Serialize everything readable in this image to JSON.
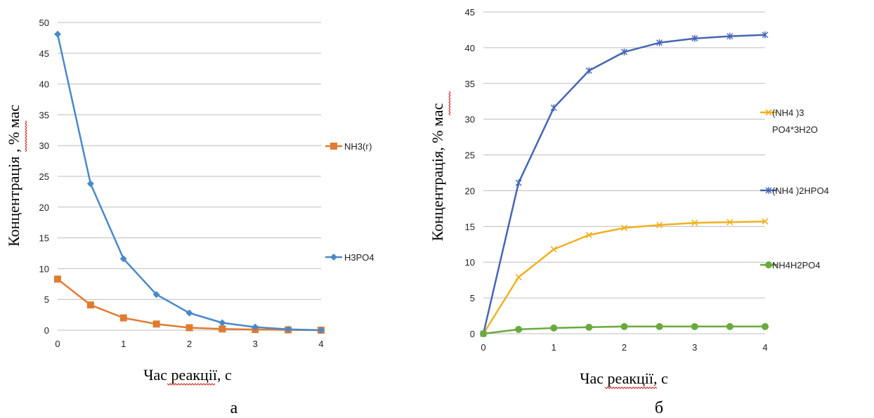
{
  "chart_data": [
    {
      "type": "line",
      "panel_label": "а",
      "xlabel": "Час реакції, с",
      "ylabel": "Концентрація , % мас",
      "xlim": [
        0,
        4
      ],
      "ylim": [
        0,
        50
      ],
      "xticks": [
        "0",
        "1",
        "2",
        "3",
        "4"
      ],
      "yticks": [
        "0",
        "5",
        "10",
        "15",
        "20",
        "25",
        "30",
        "35",
        "40",
        "45",
        "50"
      ],
      "grid": "horizontal",
      "legend_position": "right",
      "series": [
        {
          "name": "NH3(г)",
          "color": "#e07b30",
          "marker": "square",
          "x": [
            0,
            0.5,
            1,
            1.5,
            2,
            2.5,
            3,
            3.5,
            4
          ],
          "values": [
            8.3,
            4.1,
            2.0,
            1.0,
            0.4,
            0.2,
            0.1,
            0.05,
            0
          ]
        },
        {
          "name": "H3PO4",
          "color": "#4a89c8",
          "marker": "diamond",
          "x": [
            0,
            0.5,
            1,
            1.5,
            2,
            2.5,
            3,
            3.5,
            4
          ],
          "values": [
            48.1,
            23.8,
            11.6,
            5.8,
            2.8,
            1.2,
            0.5,
            0.15,
            0
          ]
        }
      ]
    },
    {
      "type": "line",
      "panel_label": "б",
      "xlabel": "Час реакції, с",
      "ylabel": "Концентрація, % мас",
      "xlim": [
        0,
        4
      ],
      "ylim": [
        0,
        45
      ],
      "xticks": [
        "0",
        "1",
        "2",
        "3",
        "4"
      ],
      "yticks": [
        "0",
        "5",
        "10",
        "15",
        "20",
        "25",
        "30",
        "35",
        "40",
        "45"
      ],
      "grid": "horizontal",
      "legend_position": "right",
      "series": [
        {
          "name": "(NH4 )3 PO4*3H2O",
          "legend_lines": [
            "(NH4 )3",
            "PO4*3H2O"
          ],
          "color": "#f0b020",
          "marker": "x",
          "x": [
            0,
            0.5,
            1,
            1.5,
            2,
            2.5,
            3,
            3.5,
            4
          ],
          "values": [
            0,
            7.9,
            11.8,
            13.8,
            14.8,
            15.2,
            15.5,
            15.6,
            15.7
          ]
        },
        {
          "name": "(NH4 )2HPO4",
          "legend_lines": [
            "(NH4 )2HPO4"
          ],
          "color": "#4465b5",
          "marker": "star",
          "x": [
            0,
            0.5,
            1,
            1.5,
            2,
            2.5,
            3,
            3.5,
            4
          ],
          "values": [
            0,
            21.1,
            31.6,
            36.8,
            39.4,
            40.7,
            41.3,
            41.6,
            41.8
          ]
        },
        {
          "name": "NH4H2PO4",
          "legend_lines": [
            "NH4H2PO4"
          ],
          "color": "#6aaa3c",
          "marker": "circle",
          "x": [
            0,
            0.5,
            1,
            1.5,
            2,
            2.5,
            3,
            3.5,
            4
          ],
          "values": [
            0,
            0.6,
            0.8,
            0.9,
            1.0,
            1.0,
            1.0,
            1.0,
            1.0
          ]
        }
      ]
    }
  ]
}
